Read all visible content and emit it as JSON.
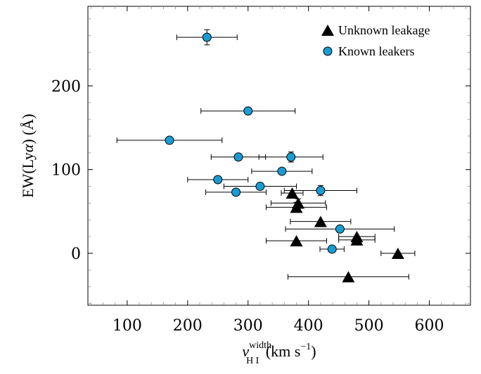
{
  "chart_data": {
    "type": "scatter",
    "xlabel": {
      "main": "v",
      "sup": "width",
      "sub": "H I",
      "unit": " (km s",
      "unit_sup": "−1",
      "unit_end": ")"
    },
    "ylabel": {
      "prefix": "EW(Ly",
      "alpha": "α",
      "suffix": ") (Å)"
    },
    "xlim": [
      35,
      668
    ],
    "ylim": [
      -62,
      295
    ],
    "xticks": [
      100,
      200,
      300,
      400,
      500,
      600
    ],
    "yticks": [
      0,
      100,
      200
    ],
    "xtick_labels": [
      "100",
      "200",
      "300",
      "400",
      "500",
      "600"
    ],
    "ytick_labels": [
      "0",
      "100",
      "200"
    ],
    "grid": false,
    "legend_position": "top-right",
    "series": [
      {
        "name": "Unknown leakage",
        "marker": "triangle",
        "color": "#000000",
        "points": [
          {
            "x": 373,
            "y": 72,
            "xerr": 18,
            "yerr": 0
          },
          {
            "x": 383,
            "y": 60,
            "xerr": 45,
            "yerr": 5
          },
          {
            "x": 380,
            "y": 55,
            "xerr": 50,
            "yerr": 6
          },
          {
            "x": 420,
            "y": 38,
            "xerr": 50,
            "yerr": 0
          },
          {
            "x": 380,
            "y": 15,
            "xerr": 50,
            "yerr": 0
          },
          {
            "x": 480,
            "y": 20,
            "xerr": 30,
            "yerr": 0
          },
          {
            "x": 480,
            "y": 16,
            "xerr": 30,
            "yerr": 0
          },
          {
            "x": 548,
            "y": 0,
            "xerr": 28,
            "yerr": 0
          },
          {
            "x": 466,
            "y": -28,
            "xerr": 100,
            "yerr": 0
          }
        ]
      },
      {
        "name": "Known leakers",
        "marker": "circle",
        "color": "#1a9cd3",
        "points": [
          {
            "x": 232,
            "y": 258,
            "xerr": 50,
            "yerr": 9
          },
          {
            "x": 300,
            "y": 170,
            "xerr": 78,
            "yerr": 3
          },
          {
            "x": 170,
            "y": 135,
            "xerr": 87,
            "yerr": 4
          },
          {
            "x": 284,
            "y": 115,
            "xerr": 45,
            "yerr": 4
          },
          {
            "x": 371,
            "y": 115,
            "xerr": 53,
            "yerr": 6
          },
          {
            "x": 356,
            "y": 98,
            "xerr": 50,
            "yerr": 0
          },
          {
            "x": 250,
            "y": 88,
            "xerr": 50,
            "yerr": 0
          },
          {
            "x": 320,
            "y": 80,
            "xerr": 60,
            "yerr": 4
          },
          {
            "x": 280,
            "y": 73,
            "xerr": 50,
            "yerr": 0
          },
          {
            "x": 420,
            "y": 75,
            "xerr": 60,
            "yerr": 6
          },
          {
            "x": 452,
            "y": 29,
            "xerr": 90,
            "yerr": 0
          },
          {
            "x": 439,
            "y": 5,
            "xerr": 20,
            "yerr": 0
          }
        ]
      }
    ]
  }
}
